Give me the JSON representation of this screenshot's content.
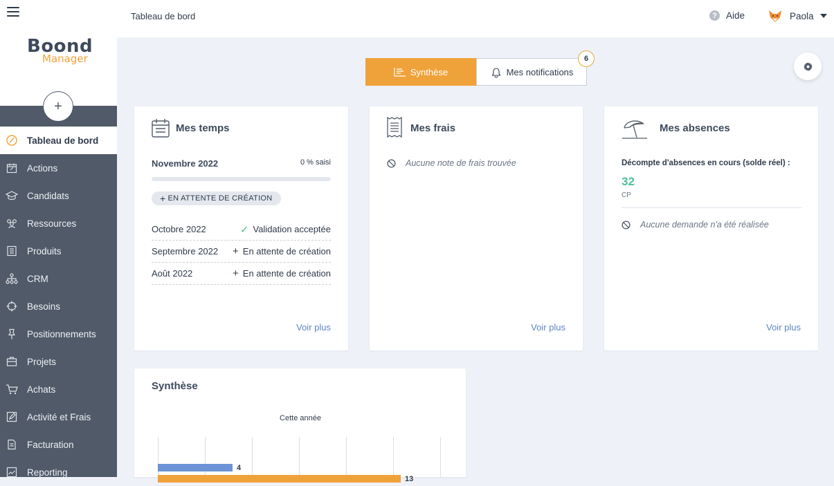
{
  "topbar": {
    "breadcrumb": "Tableau de bord",
    "help_label": "Aide",
    "user_name": "Paola"
  },
  "logo": {
    "main": "Boond",
    "sub": "Manager"
  },
  "add_button": "+",
  "sidebar": {
    "items": [
      {
        "label": "Tableau de bord",
        "icon": "dashboard-icon"
      },
      {
        "label": "Actions",
        "icon": "calendar-edit-icon"
      },
      {
        "label": "Candidats",
        "icon": "graduation-cap-icon"
      },
      {
        "label": "Ressources",
        "icon": "people-icon"
      },
      {
        "label": "Produits",
        "icon": "product-list-icon"
      },
      {
        "label": "CRM",
        "icon": "org-chart-icon"
      },
      {
        "label": "Besoins",
        "icon": "target-icon"
      },
      {
        "label": "Positionnements",
        "icon": "pin-icon"
      },
      {
        "label": "Projets",
        "icon": "briefcase-icon"
      },
      {
        "label": "Achats",
        "icon": "cart-icon"
      },
      {
        "label": "Activité et Frais",
        "icon": "edit-icon"
      },
      {
        "label": "Facturation",
        "icon": "invoice-icon"
      },
      {
        "label": "Reporting",
        "icon": "chart-line-icon"
      }
    ]
  },
  "tabs": {
    "synthese": "Synthèse",
    "notifications": "Mes notifications",
    "notif_count": "6"
  },
  "temps": {
    "title": "Mes temps",
    "current_month": "Novembre 2022",
    "percent": "0 % saisi",
    "percent_value": 0,
    "pill": "EN ATTENTE DE CRÉATION",
    "rows": [
      {
        "month": "Octobre 2022",
        "mark": "✓",
        "status": "Validation acceptée"
      },
      {
        "month": "Septembre 2022",
        "mark": "+",
        "status": "En attente de création"
      },
      {
        "month": "Août 2022",
        "mark": "+",
        "status": "En attente de création"
      }
    ],
    "voir_plus": "Voir plus"
  },
  "frais": {
    "title": "Mes frais",
    "empty": "Aucune note de frais trouvée",
    "voir_plus": "Voir plus"
  },
  "absences": {
    "title": "Mes absences",
    "label": "Décompte d'absences en cours (solde réel) :",
    "value": "32",
    "unit": "CP",
    "empty": "Aucune demande n'a été réalisée",
    "voir_plus": "Voir plus"
  },
  "synthese_card": {
    "title": "Synthèse"
  },
  "chart_data": {
    "type": "bar",
    "title": "Cette année",
    "orientation": "horizontal",
    "series": [
      {
        "values": [
          4
        ],
        "color": "#6b93d6"
      },
      {
        "values": [
          13
        ],
        "color": "#f0a23a"
      }
    ],
    "data_labels": [
      "4",
      "13"
    ],
    "grid": true
  },
  "colors": {
    "accent": "#f0a23a",
    "sidebar": "#505a68",
    "link": "#5b86c0",
    "positive": "#4fbf96"
  }
}
